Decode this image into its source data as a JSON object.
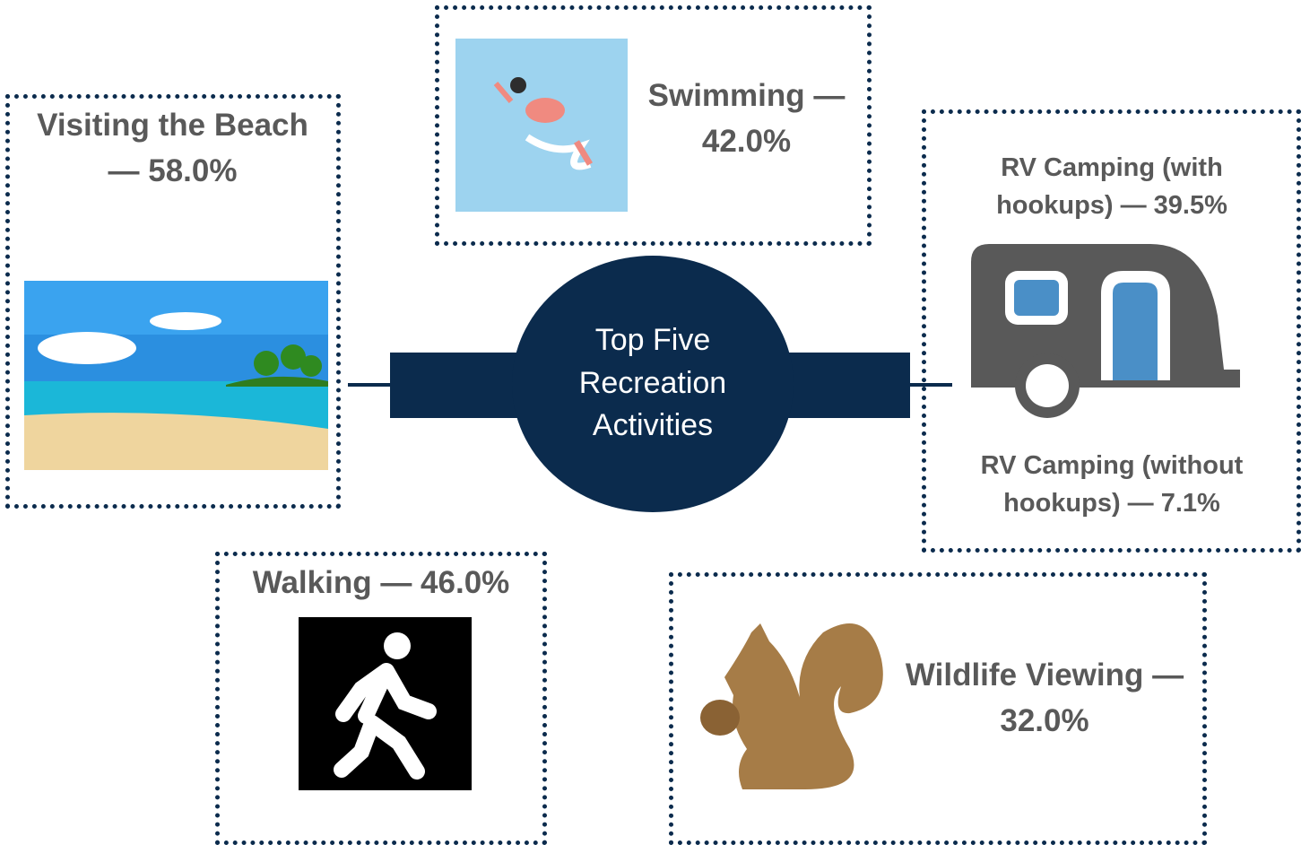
{
  "center": {
    "title": "Top Five Recreation Activities"
  },
  "activities": [
    {
      "labels": [
        "Visiting the Beach — 58.0%"
      ]
    },
    {
      "labels": [
        "Swimming — 42.0%"
      ]
    },
    {
      "labels": [
        "RV Camping (with hookups) — 39.5%",
        "RV Camping (without hookups) — 7.1%"
      ]
    },
    {
      "labels": [
        "Walking — 46.0%"
      ]
    },
    {
      "labels": [
        "Wildlife Viewing — 32.0%"
      ]
    }
  ]
}
